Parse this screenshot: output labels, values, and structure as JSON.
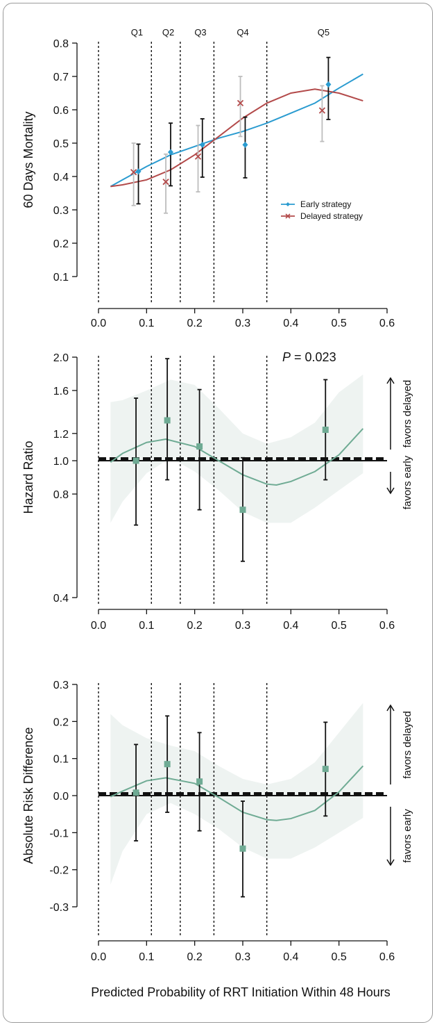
{
  "shared": {
    "xlabel": "Predicted Probability of RRT Initiation Within 48 Hours",
    "favors_delayed": "favors delayed",
    "favors_early": "favors early",
    "quintile_cutpoints": [
      0.0,
      0.11,
      0.17,
      0.24,
      0.35
    ]
  },
  "chart_data": [
    {
      "type": "scatter",
      "ylabel": "60 Days Mortality",
      "xlim": [
        0.0,
        0.6
      ],
      "ylim": [
        0.1,
        0.8
      ],
      "xticks": [
        "0.0",
        "0.1",
        "0.2",
        "0.3",
        "0.4",
        "0.5",
        "0.6"
      ],
      "yticks": [
        "0.1",
        "0.2",
        "0.3",
        "0.4",
        "0.5",
        "0.6",
        "0.7",
        "0.8"
      ],
      "quintiles": [
        {
          "label": "Q1",
          "x": 0.08
        },
        {
          "label": "Q2",
          "x": 0.145
        },
        {
          "label": "Q3",
          "x": 0.212
        },
        {
          "label": "Q4",
          "x": 0.3
        },
        {
          "label": "Q5",
          "x": 0.468
        }
      ],
      "legend": {
        "position": "right",
        "entries": [
          "Early strategy",
          "Delayed strategy"
        ]
      },
      "series": [
        {
          "name": "Early strategy",
          "color": "#2a9bd0",
          "marker": "diamond",
          "points": [
            {
              "x": 0.083,
              "y": 0.415,
              "lo": 0.318,
              "hi": 0.497
            },
            {
              "x": 0.15,
              "y": 0.473,
              "lo": 0.372,
              "hi": 0.56
            },
            {
              "x": 0.216,
              "y": 0.495,
              "lo": 0.398,
              "hi": 0.573
            },
            {
              "x": 0.305,
              "y": 0.495,
              "lo": 0.396,
              "hi": 0.578
            },
            {
              "x": 0.478,
              "y": 0.676,
              "lo": 0.571,
              "hi": 0.757
            }
          ],
          "curve": [
            [
              0.025,
              0.37
            ],
            [
              0.05,
              0.39
            ],
            [
              0.1,
              0.43
            ],
            [
              0.15,
              0.465
            ],
            [
              0.2,
              0.49
            ],
            [
              0.25,
              0.515
            ],
            [
              0.3,
              0.535
            ],
            [
              0.35,
              0.56
            ],
            [
              0.4,
              0.59
            ],
            [
              0.45,
              0.62
            ],
            [
              0.5,
              0.665
            ],
            [
              0.55,
              0.707
            ]
          ]
        },
        {
          "name": "Delayed strategy",
          "color": "#b34a4a",
          "marker": "x",
          "points": [
            {
              "x": 0.073,
              "y": 0.413,
              "lo": 0.313,
              "hi": 0.5
            },
            {
              "x": 0.14,
              "y": 0.384,
              "lo": 0.29,
              "hi": 0.467
            },
            {
              "x": 0.207,
              "y": 0.46,
              "lo": 0.354,
              "hi": 0.553
            },
            {
              "x": 0.295,
              "y": 0.62,
              "lo": 0.52,
              "hi": 0.7
            },
            {
              "x": 0.465,
              "y": 0.598,
              "lo": 0.505,
              "hi": 0.672
            }
          ],
          "curve": [
            [
              0.025,
              0.37
            ],
            [
              0.05,
              0.375
            ],
            [
              0.1,
              0.39
            ],
            [
              0.15,
              0.42
            ],
            [
              0.2,
              0.465
            ],
            [
              0.25,
              0.52
            ],
            [
              0.3,
              0.575
            ],
            [
              0.35,
              0.62
            ],
            [
              0.4,
              0.65
            ],
            [
              0.45,
              0.662
            ],
            [
              0.5,
              0.65
            ],
            [
              0.55,
              0.627
            ]
          ]
        }
      ]
    },
    {
      "type": "scatter",
      "ylabel": "Hazard Ratio",
      "annotation": {
        "p_label": "P",
        "p_value": " = 0.023"
      },
      "xlim": [
        0.0,
        0.6
      ],
      "ylim": [
        0.4,
        2.0
      ],
      "yscale": "log",
      "xticks": [
        "0.0",
        "0.1",
        "0.2",
        "0.3",
        "0.4",
        "0.5",
        "0.6"
      ],
      "yticks": [
        "0.4",
        "0.8",
        "1.0",
        "1.2",
        "1.6",
        "2.0"
      ],
      "reference": 1.0,
      "color": "#6fab94",
      "points": [
        {
          "x": 0.078,
          "y": 1.0,
          "lo": 0.65,
          "hi": 1.52
        },
        {
          "x": 0.143,
          "y": 1.31,
          "lo": 0.88,
          "hi": 1.98
        },
        {
          "x": 0.21,
          "y": 1.1,
          "lo": 0.72,
          "hi": 1.61
        },
        {
          "x": 0.3,
          "y": 0.72,
          "lo": 0.51,
          "hi": 1.02
        },
        {
          "x": 0.472,
          "y": 1.23,
          "lo": 0.88,
          "hi": 1.72
        }
      ],
      "curve": [
        [
          0.025,
          0.99
        ],
        [
          0.05,
          1.05
        ],
        [
          0.1,
          1.13
        ],
        [
          0.14,
          1.155
        ],
        [
          0.2,
          1.1
        ],
        [
          0.25,
          1.0
        ],
        [
          0.3,
          0.91
        ],
        [
          0.35,
          0.855
        ],
        [
          0.37,
          0.85
        ],
        [
          0.4,
          0.87
        ],
        [
          0.45,
          0.93
        ],
        [
          0.5,
          1.04
        ],
        [
          0.55,
          1.24
        ]
      ],
      "band": [
        [
          0.025,
          0.66,
          1.48
        ],
        [
          0.05,
          0.76,
          1.5
        ],
        [
          0.1,
          0.92,
          1.6
        ],
        [
          0.15,
          1.02,
          1.72
        ],
        [
          0.2,
          0.93,
          1.66
        ],
        [
          0.25,
          0.82,
          1.42
        ],
        [
          0.3,
          0.71,
          1.2
        ],
        [
          0.35,
          0.66,
          1.12
        ],
        [
          0.4,
          0.66,
          1.17
        ],
        [
          0.45,
          0.73,
          1.29
        ],
        [
          0.5,
          0.82,
          1.58
        ],
        [
          0.55,
          0.92,
          1.78
        ]
      ]
    },
    {
      "type": "scatter",
      "ylabel": "Absolute Risk Difference",
      "xlim": [
        0.0,
        0.6
      ],
      "ylim": [
        -0.3,
        0.3
      ],
      "xticks": [
        "0.0",
        "0.1",
        "0.2",
        "0.3",
        "0.4",
        "0.5",
        "0.6"
      ],
      "yticks": [
        "-0.3",
        "-0.2",
        "-0.1",
        "0.0",
        "0.1",
        "0.2",
        "0.3"
      ],
      "reference": 0.0,
      "color": "#6fab94",
      "points": [
        {
          "x": 0.078,
          "y": 0.008,
          "lo": -0.122,
          "hi": 0.138
        },
        {
          "x": 0.143,
          "y": 0.085,
          "lo": -0.045,
          "hi": 0.215
        },
        {
          "x": 0.21,
          "y": 0.038,
          "lo": -0.095,
          "hi": 0.17
        },
        {
          "x": 0.3,
          "y": -0.143,
          "lo": -0.273,
          "hi": -0.015
        },
        {
          "x": 0.472,
          "y": 0.072,
          "lo": -0.055,
          "hi": 0.198
        }
      ],
      "curve": [
        [
          0.025,
          -0.003
        ],
        [
          0.05,
          0.012
        ],
        [
          0.1,
          0.04
        ],
        [
          0.14,
          0.048
        ],
        [
          0.2,
          0.033
        ],
        [
          0.25,
          -0.005
        ],
        [
          0.3,
          -0.045
        ],
        [
          0.35,
          -0.065
        ],
        [
          0.37,
          -0.067
        ],
        [
          0.4,
          -0.062
        ],
        [
          0.45,
          -0.04
        ],
        [
          0.5,
          0.01
        ],
        [
          0.55,
          0.08
        ]
      ],
      "band": [
        [
          0.025,
          -0.24,
          0.22
        ],
        [
          0.05,
          -0.15,
          0.19
        ],
        [
          0.1,
          -0.05,
          0.155
        ],
        [
          0.15,
          -0.02,
          0.135
        ],
        [
          0.2,
          -0.05,
          0.12
        ],
        [
          0.25,
          -0.09,
          0.08
        ],
        [
          0.3,
          -0.14,
          0.045
        ],
        [
          0.35,
          -0.17,
          0.03
        ],
        [
          0.4,
          -0.17,
          0.045
        ],
        [
          0.45,
          -0.14,
          0.09
        ],
        [
          0.5,
          -0.1,
          0.17
        ],
        [
          0.55,
          -0.06,
          0.25
        ]
      ]
    }
  ]
}
